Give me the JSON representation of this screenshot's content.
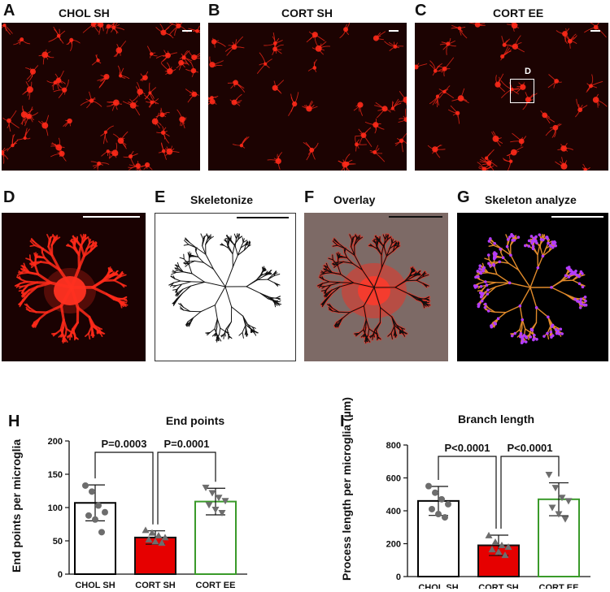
{
  "panels": {
    "A": {
      "letter": "A",
      "title": "CHOL SH"
    },
    "B": {
      "letter": "B",
      "title": "CORT SH"
    },
    "C": {
      "letter": "C",
      "title": "CORT EE",
      "inset_label": "D"
    },
    "D": {
      "letter": "D"
    },
    "E": {
      "letter": "E",
      "title": "Skeletonize"
    },
    "F": {
      "letter": "F",
      "title": "Overlay"
    },
    "G": {
      "letter": "G",
      "title": "Skeleton analyze"
    },
    "H": {
      "letter": "H"
    },
    "I": {
      "letter": "I"
    }
  },
  "colors": {
    "cort_sh_bar": "#e60000",
    "cort_ee_outline": "#3a9a2a",
    "chol_sh_outline": "#000000",
    "microglia_red": "#ff2a1a",
    "skeleton_orange": "#e08a2a",
    "skeleton_purple": "#b43cff"
  },
  "chart_data": [
    {
      "type": "bar",
      "title": "End points",
      "ylabel": "End points per microglia",
      "categories": [
        "CHOL SH",
        "CORT SH",
        "CORT EE"
      ],
      "values": [
        107,
        55,
        109
      ],
      "errors": [
        27,
        10,
        20
      ],
      "ylim": [
        0,
        200
      ],
      "yticks": [
        0,
        50,
        100,
        150,
        200
      ],
      "points": [
        [
          133,
          124,
          103,
          93,
          88,
          82,
          63
        ],
        [
          66,
          62,
          58,
          55,
          52,
          49,
          47
        ],
        [
          130,
          122,
          115,
          110,
          104,
          97,
          92
        ]
      ],
      "annotations": [
        {
          "from": 0,
          "to": 1,
          "label": "P=0.0003"
        },
        {
          "from": 1,
          "to": 2,
          "label": "P=0.0001"
        }
      ]
    },
    {
      "type": "bar",
      "title": "Branch length",
      "ylabel": "Process length per microglia (µm)",
      "categories": [
        "CHOL SH",
        "CORT SH",
        "CORT EE"
      ],
      "values": [
        460,
        190,
        470
      ],
      "errors": [
        88,
        62,
        100
      ],
      "ylim": [
        0,
        800
      ],
      "yticks": [
        0,
        200,
        400,
        600,
        800
      ],
      "points": [
        [
          550,
          510,
          470,
          440,
          410,
          380,
          360
        ],
        [
          250,
          210,
          190,
          180,
          165,
          150,
          130
        ],
        [
          620,
          540,
          480,
          460,
          420,
          380,
          350
        ]
      ],
      "annotations": [
        {
          "from": 0,
          "to": 1,
          "label": "P<0.0001"
        },
        {
          "from": 1,
          "to": 2,
          "label": "P<0.0001"
        }
      ]
    }
  ]
}
